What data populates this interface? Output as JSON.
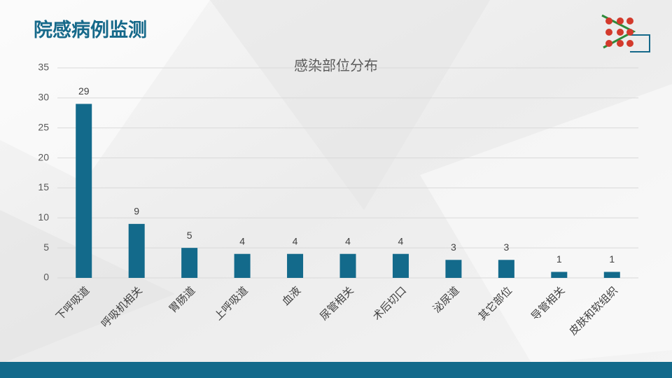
{
  "slide_title": "院感病例监测",
  "chart_data": {
    "type": "bar",
    "title": "感染部位分布",
    "categories": [
      "下呼吸道",
      "呼吸机相关",
      "胃肠道",
      "上呼吸道",
      "血液",
      "尿管相关",
      "术后切口",
      "泌尿道",
      "其它部位",
      "导管相关",
      "皮肤和软组织"
    ],
    "values": [
      29,
      9,
      5,
      4,
      4,
      4,
      4,
      3,
      3,
      1,
      1
    ],
    "color": "#136a8b",
    "ylim": [
      0,
      35
    ],
    "yticks": [
      0,
      5,
      10,
      15,
      20,
      25,
      30,
      35
    ],
    "grid": true
  }
}
